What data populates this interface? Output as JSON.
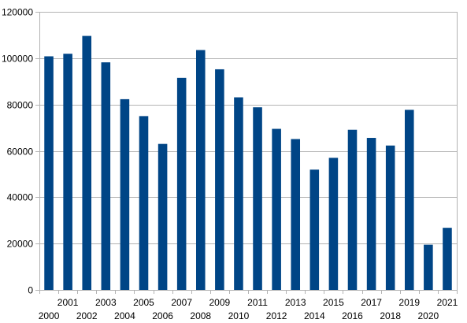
{
  "chart_data": {
    "type": "bar",
    "title": "",
    "xlabel": "",
    "ylabel": "",
    "categories": [
      "2000",
      "2001",
      "2002",
      "2003",
      "2004",
      "2005",
      "2006",
      "2007",
      "2008",
      "2009",
      "2010",
      "2011",
      "2012",
      "2013",
      "2014",
      "2015",
      "2016",
      "2017",
      "2018",
      "2019",
      "2020",
      "2021"
    ],
    "values": [
      100800,
      101900,
      109600,
      98200,
      82300,
      75000,
      63000,
      91500,
      103500,
      95200,
      83100,
      78800,
      69500,
      65100,
      51900,
      57000,
      69100,
      65600,
      62300,
      77700,
      19500,
      26800
    ],
    "ylim": [
      0,
      120000
    ],
    "yticks": [
      0,
      20000,
      40000,
      60000,
      80000,
      100000,
      120000
    ],
    "grid": true,
    "legend": "none",
    "bar_color": "#004586",
    "x_tick_layout": "staggered"
  }
}
